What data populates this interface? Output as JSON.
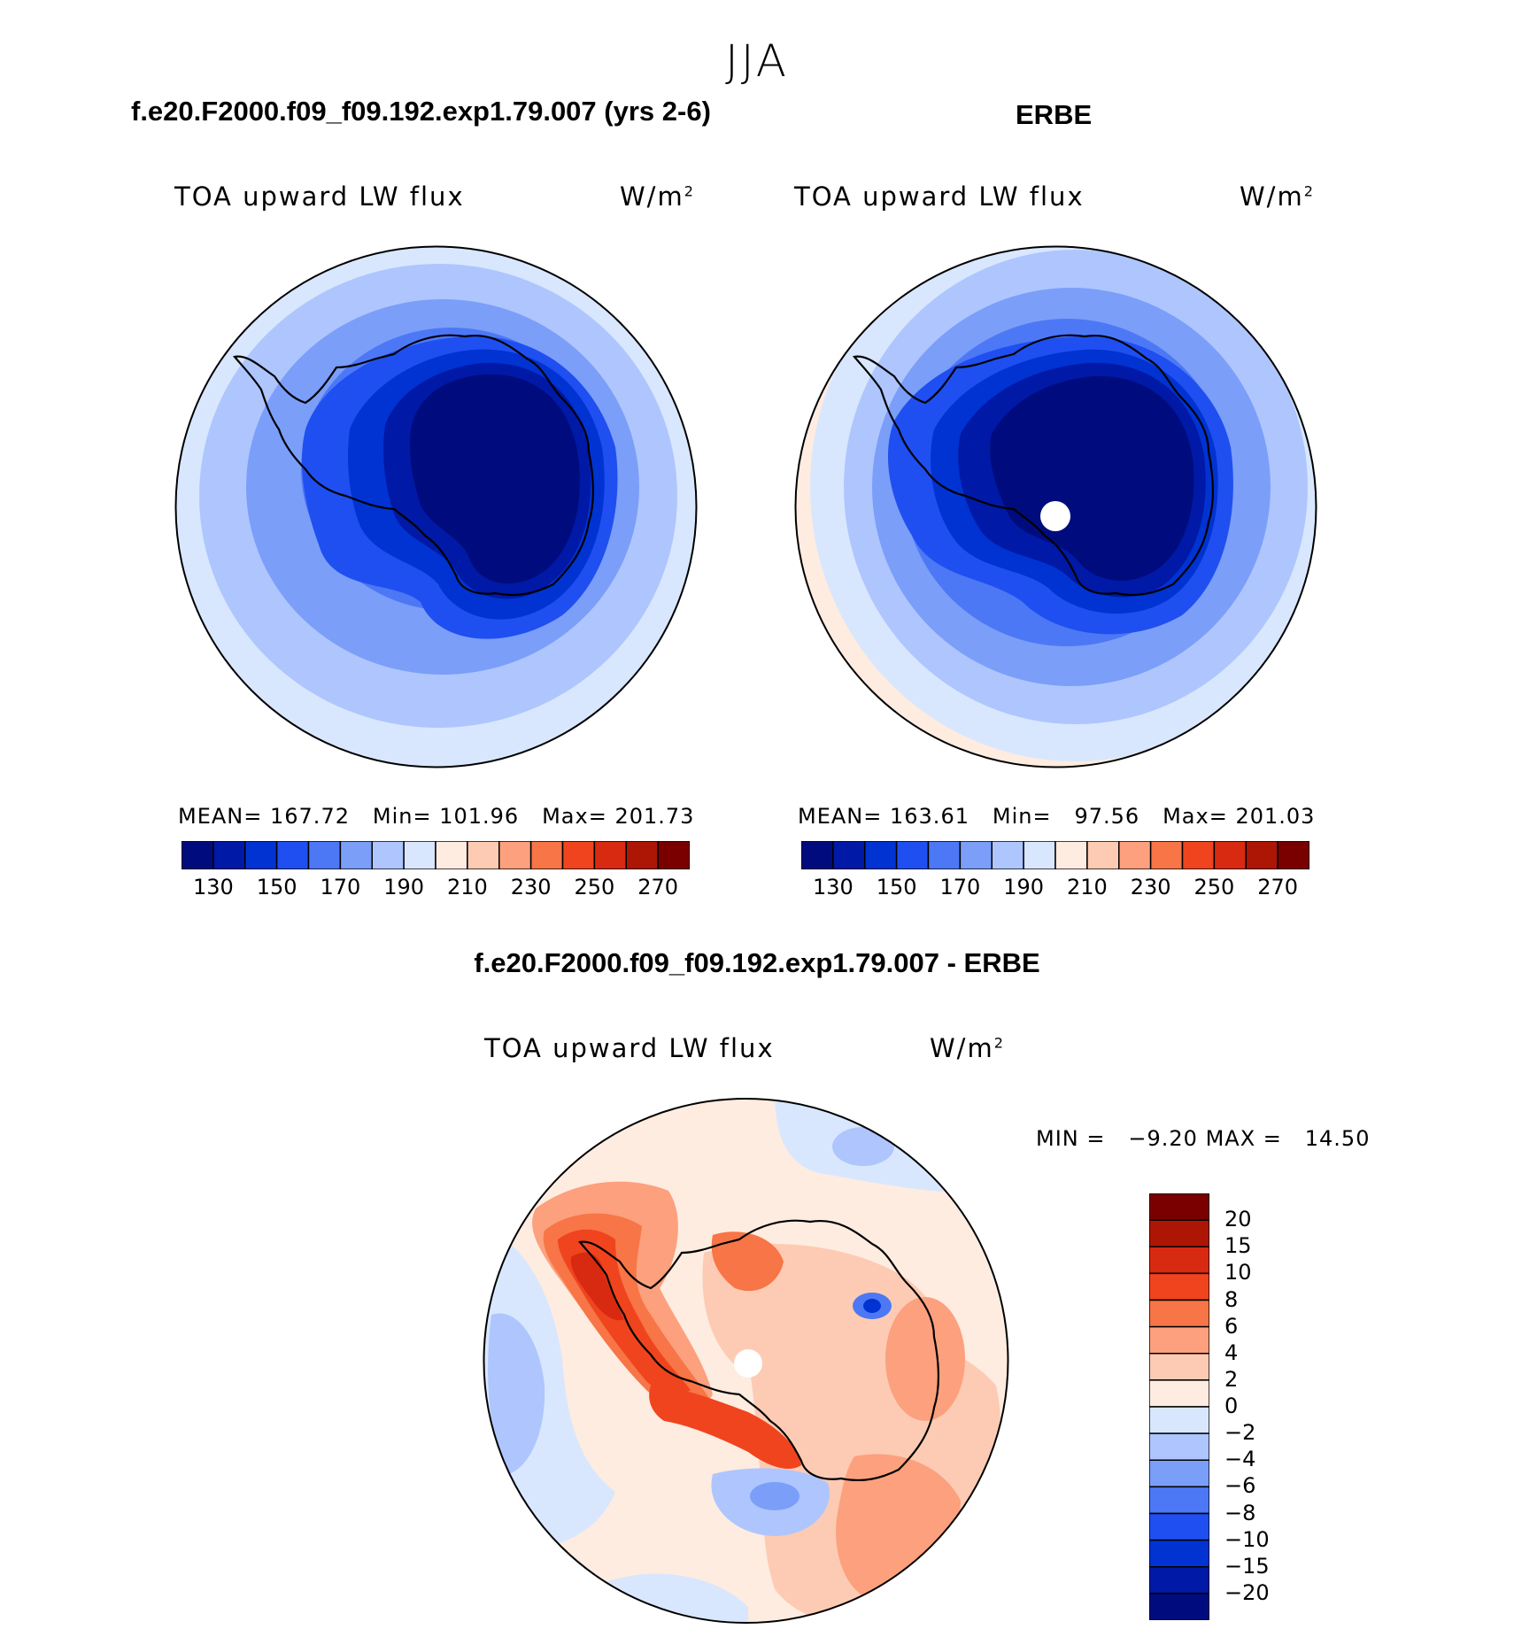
{
  "figure": {
    "season": "JJA"
  },
  "chart_data": [
    {
      "type": "heatmap",
      "projection": "south-polar-stereographic",
      "case_title": "f.e20.F2000.f09_f09.192.exp1.79.007 (yrs 2-6)",
      "variable": "TOA upward LW flux",
      "units_base": "W/m",
      "units_exp": "2",
      "stats": {
        "mean_label": "MEAN=",
        "mean": "167.72",
        "min_label": "Min=",
        "min": "101.96",
        "max_label": "Max=",
        "max": "201.73"
      },
      "colorbar": {
        "orientation": "horizontal",
        "tick_labels": [
          "130",
          "150",
          "170",
          "190",
          "210",
          "230",
          "250",
          "270"
        ],
        "colors": [
          "#000c7e",
          "#0019a6",
          "#0033d1",
          "#1f4ff0",
          "#4d78f5",
          "#7b9ef9",
          "#aec6fd",
          "#d8e7fe",
          "#feece0",
          "#fdcbb3",
          "#fca07e",
          "#f77546",
          "#f0441f",
          "#d82a10",
          "#ad1505",
          "#7a0000"
        ]
      }
    },
    {
      "type": "heatmap",
      "projection": "south-polar-stereographic",
      "case_title": "ERBE",
      "variable": "TOA upward LW flux",
      "units_base": "W/m",
      "units_exp": "2",
      "stats": {
        "mean_label": "MEAN=",
        "mean": "163.61",
        "min_label": "Min=",
        "min": "97.56",
        "max_label": "Max=",
        "max": "201.03"
      },
      "colorbar": {
        "orientation": "horizontal",
        "tick_labels": [
          "130",
          "150",
          "170",
          "190",
          "210",
          "230",
          "250",
          "270"
        ],
        "colors": [
          "#000c7e",
          "#0019a6",
          "#0033d1",
          "#1f4ff0",
          "#4d78f5",
          "#7b9ef9",
          "#aec6fd",
          "#d8e7fe",
          "#feece0",
          "#fdcbb3",
          "#fca07e",
          "#f77546",
          "#f0441f",
          "#d82a10",
          "#ad1505",
          "#7a0000"
        ]
      }
    },
    {
      "type": "heatmap",
      "projection": "south-polar-stereographic",
      "case_title": "f.e20.F2000.f09_f09.192.exp1.79.007 - ERBE",
      "variable": "TOA upward LW flux",
      "units_base": "W/m",
      "units_exp": "2",
      "stats": {
        "min_label": "MIN =",
        "min": "−9.20",
        "max_label": "MAX =",
        "max": "14.50"
      },
      "colorbar": {
        "orientation": "vertical",
        "tick_labels": [
          "20",
          "15",
          "10",
          "8",
          "6",
          "4",
          "2",
          "0",
          "−2",
          "−4",
          "−6",
          "−8",
          "−10",
          "−15",
          "−20"
        ],
        "colors": [
          "#7a0000",
          "#ad1505",
          "#d82a10",
          "#f0441f",
          "#f77546",
          "#fca07e",
          "#fdcbb3",
          "#feece0",
          "#d8e7fe",
          "#aec6fd",
          "#7b9ef9",
          "#4d78f5",
          "#1f4ff0",
          "#0033d1",
          "#0019a6",
          "#000c7e"
        ]
      }
    }
  ]
}
